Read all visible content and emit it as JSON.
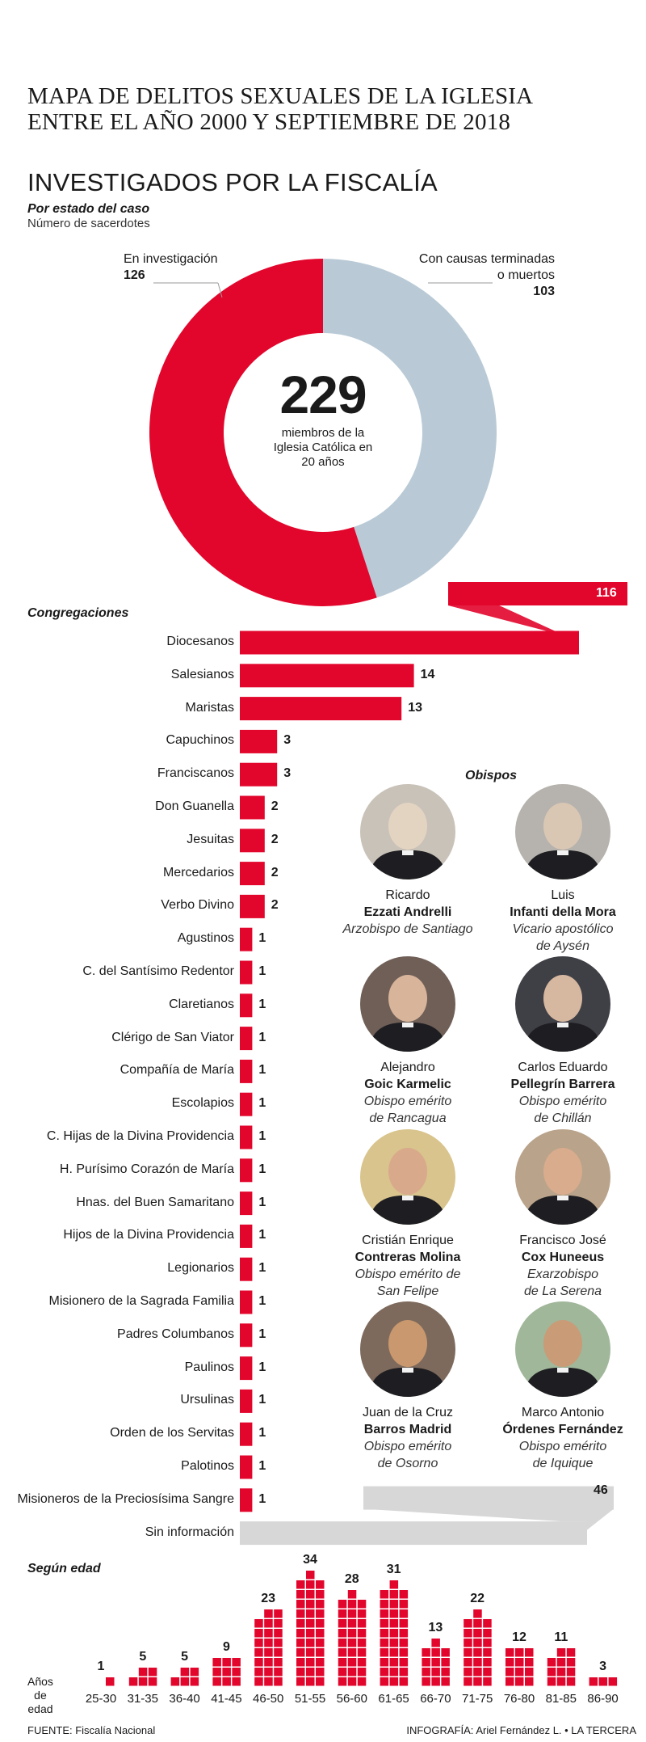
{
  "title": "MAPA DE DELITOS SEXUALES DE LA IGLESIA ENTRE EL AÑO 2000 Y SEPTIEMBRE DE 2018",
  "subtitle": "INVESTIGADOS POR LA FISCALÍA",
  "donut": {
    "heading": "Por estado del caso",
    "subheading": "Número de sacerdotes",
    "total": "229",
    "center_text": [
      "miembros de la",
      "Iglesia Católica en",
      "20 años"
    ],
    "colors": {
      "investigacion": "#e2062c",
      "terminadas": "#b9cad6"
    }
  },
  "chart_data": [
    {
      "type": "pie",
      "title": "Por estado del caso",
      "subtitle": "Número de sacerdotes",
      "labels": [
        "En investigación",
        "Con causas terminadas o muertos"
      ],
      "label_lines": [
        [
          "En investigación"
        ],
        [
          "Con causas terminadas",
          "o muertos"
        ]
      ],
      "values": [
        126,
        103
      ]
    },
    {
      "type": "bar",
      "title": "Congregaciones",
      "categories": [
        "Diocesanos",
        "Salesianos",
        "Maristas",
        "Capuchinos",
        "Franciscanos",
        "Don Guanella",
        "Jesuitas",
        "Mercedarios",
        "Verbo Divino",
        "Agustinos",
        "C. del Santísimo Redentor",
        "Claretianos",
        "Clérigo de San Viator",
        "Compañía de María",
        "Escolapios",
        "C. Hijas de la Divina Providencia",
        "H. Purísimo Corazón de María",
        "Hnas. del Buen Samaritano",
        "Hijos de la Divina Providencia",
        "Legionarios",
        "Misionero de la Sagrada Familia",
        "Padres Columbanos",
        "Paulinos",
        "Ursulinas",
        "Orden de los Servitas",
        "Palotinos",
        "Misioneros de la Preciosísima Sangre",
        "Sin información"
      ],
      "values": [
        116,
        14,
        13,
        3,
        3,
        2,
        2,
        2,
        2,
        1,
        1,
        1,
        1,
        1,
        1,
        1,
        1,
        1,
        1,
        1,
        1,
        1,
        1,
        1,
        1,
        1,
        1,
        46
      ],
      "colors": {
        "bar": "#e2062c",
        "unknown": "#d7d7d7"
      }
    },
    {
      "type": "bar",
      "title": "Según edad",
      "xlabel": "Años de edad",
      "categories": [
        "25-30",
        "31-35",
        "36-40",
        "41-45",
        "46-50",
        "51-55",
        "56-60",
        "61-65",
        "66-70",
        "71-75",
        "76-80",
        "81-85",
        "86-90"
      ],
      "values": [
        1,
        5,
        5,
        9,
        23,
        34,
        28,
        31,
        13,
        22,
        12,
        11,
        3
      ],
      "xlabel_lines": [
        "Años",
        "de",
        "edad"
      ]
    }
  ],
  "obispos": {
    "heading": "Obispos",
    "people": [
      {
        "first": "Ricardo",
        "last": "Ezzati Andrelli",
        "role": [
          "Arzobispo de Santiago"
        ]
      },
      {
        "first": "Luis",
        "last": "Infanti della Mora",
        "role": [
          "Vicario apostólico",
          "de Aysén"
        ]
      },
      {
        "first": "Alejandro",
        "last": "Goic Karmelic",
        "role": [
          "Obispo emérito",
          "de Rancagua"
        ]
      },
      {
        "first": "Carlos Eduardo",
        "last": "Pellegrín Barrera",
        "role": [
          "Obispo emérito",
          "de Chillán"
        ]
      },
      {
        "first": "Cristián Enrique",
        "last": "Contreras Molina",
        "role": [
          "Obispo emérito de",
          "San Felipe"
        ]
      },
      {
        "first": "Francisco José",
        "last": "Cox Huneeus",
        "role": [
          "Exarzobispo",
          "de La Serena"
        ]
      },
      {
        "first": "Juan de la Cruz",
        "last": "Barros Madrid",
        "role": [
          "Obispo emérito",
          "de Osorno"
        ]
      },
      {
        "first": "Marco Antonio",
        "last": "Órdenes Fernández",
        "role": [
          "Obispo emérito",
          "de Iquique"
        ]
      }
    ]
  },
  "footer": {
    "source": "FUENTE: Fiscalía Nacional",
    "credit": "INFOGRAFÍA: Ariel Fernández L. • LA TERCERA"
  }
}
